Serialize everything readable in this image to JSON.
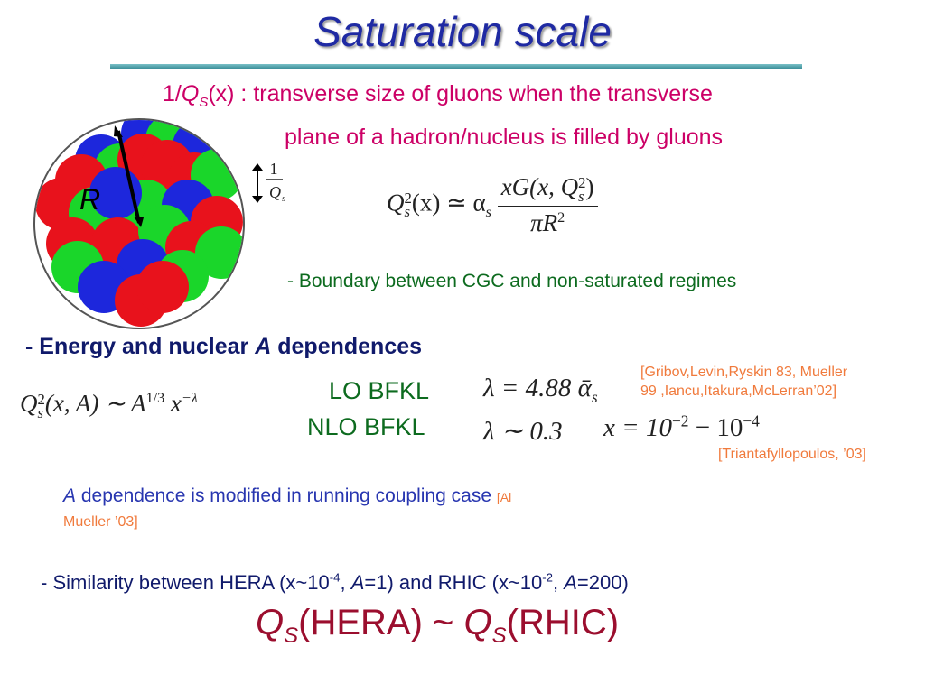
{
  "title": "Saturation scale",
  "definition": {
    "prefix": "1/",
    "q": "Q",
    "q_sub": "S",
    "x_arg": "(x)",
    "line1_rest": " : transverse size of gluons when the transverse",
    "line2": "plane of a hadron/nucleus is filled by gluons"
  },
  "figure": {
    "radius_label": "R",
    "inv_q_numerator": "1",
    "inv_q_denominator": "Q",
    "inv_q_subscript": "s",
    "colors": {
      "red": "#e8121c",
      "green": "#1ad62a",
      "blue": "#1d27dc",
      "outline": "#555555"
    }
  },
  "formula_main": {
    "lhs": "Q",
    "lhs_sub": "s",
    "lhs_sup": "2",
    "lhs_arg": "(x) ≃ α",
    "alpha_sub": "s",
    "numerator": "xG(x, Q",
    "numerator_sub": "s",
    "numerator_sup": "2",
    "numerator_close": ")",
    "denominator": "πR",
    "denominator_sup": "2"
  },
  "boundary_note": "- Boundary between CGC and non-saturated regimes",
  "energy_heading": {
    "prefix": "- Energy and nuclear ",
    "italic": "A",
    "suffix": " dependences"
  },
  "scaling_formula": {
    "lhs": "Q",
    "sub": "s",
    "sup": "2",
    "arg": "(x, A)  ∼  A",
    "a_exp": "1/3",
    "x": " x",
    "x_exp": "−λ"
  },
  "lo_bfkl": {
    "label": "LO BFKL",
    "formula": "λ = 4.88 ᾱ",
    "formula_sub": "s"
  },
  "nlo_bfkl": {
    "label": "NLO BFKL",
    "formula": "λ ∼ 0.3",
    "range_lhs": "x = 10",
    "range_exp1": "−2",
    "range_mid": " − 10",
    "range_exp2": "−4"
  },
  "references": {
    "ref1_line1": "[Gribov,Levin,Ryskin 83, Mueller",
    "ref1_line2": "99 ,Iancu,Itakura,McLerran’02]",
    "ref2": "[Triantafyllopoulos, ’03]",
    "ref3_line1": "[Al",
    "ref3_line2": "Mueller ’03]"
  },
  "running_coupling": {
    "italic": "A",
    "text": " dependence is modified in running coupling case "
  },
  "similarity": {
    "t1": "- Similarity between HERA (x~10",
    "e1": "-4",
    "t2": ", ",
    "a1": "A",
    "t3": "=1) and RHIC (x~10",
    "e2": "-2",
    "t4": ", ",
    "a2": "A",
    "t5": "=200)"
  },
  "comparison": {
    "q1": "Q",
    "s1": "S",
    "hera": "(HERA) ~ ",
    "q2": "Q",
    "s2": "S",
    "rhic": "(RHIC)"
  }
}
